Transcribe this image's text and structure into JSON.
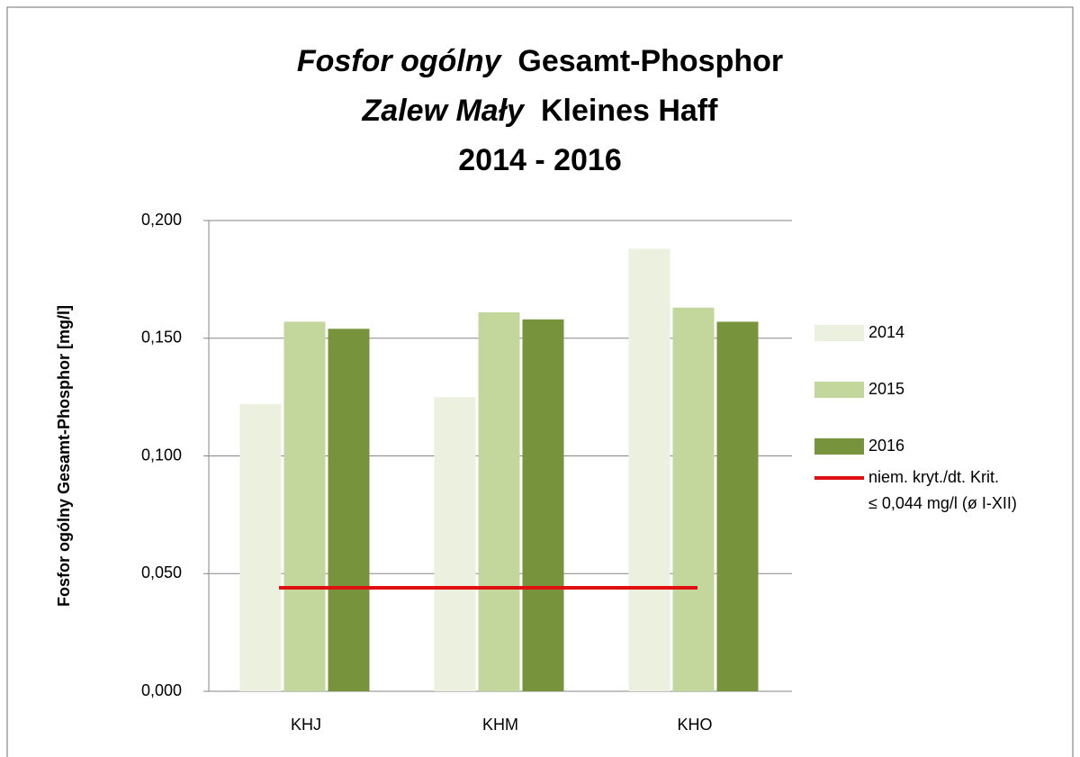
{
  "chart_data": {
    "type": "bar",
    "title": [
      {
        "italic": "Fosfor ogólny",
        "bold": "Gesamt-Phosphor"
      },
      {
        "italic": "Zalew Mały",
        "bold": "Kleines Haff"
      },
      {
        "bold": "2014 - 2016"
      }
    ],
    "ylabel": "Fosfor ogólny  Gesamt-Phosphor  [mg/l]",
    "categories": [
      "KHJ",
      "KHM",
      "KHO"
    ],
    "series": [
      {
        "name": "2014",
        "color": "#ebf0df",
        "values": [
          0.122,
          0.125,
          0.188
        ]
      },
      {
        "name": "2015",
        "color": "#c3d69b",
        "values": [
          0.157,
          0.161,
          0.163
        ]
      },
      {
        "name": "2016",
        "color": "#77933c",
        "values": [
          0.154,
          0.158,
          0.157
        ]
      }
    ],
    "reference_line": {
      "name": [
        "niem. kryt./dt. Krit.",
        "≤ 0,044 mg/l (ø I-XII)"
      ],
      "value": 0.044,
      "color": "#e01010"
    },
    "ylim": [
      0,
      0.2
    ],
    "yticks": [
      {
        "value": 0,
        "label": "0,000"
      },
      {
        "value": 0.05,
        "label": "0,050"
      },
      {
        "value": 0.1,
        "label": "0,100"
      },
      {
        "value": 0.15,
        "label": "0,150"
      },
      {
        "value": 0.2,
        "label": "0,200"
      }
    ],
    "grid": true,
    "legend": "right"
  }
}
